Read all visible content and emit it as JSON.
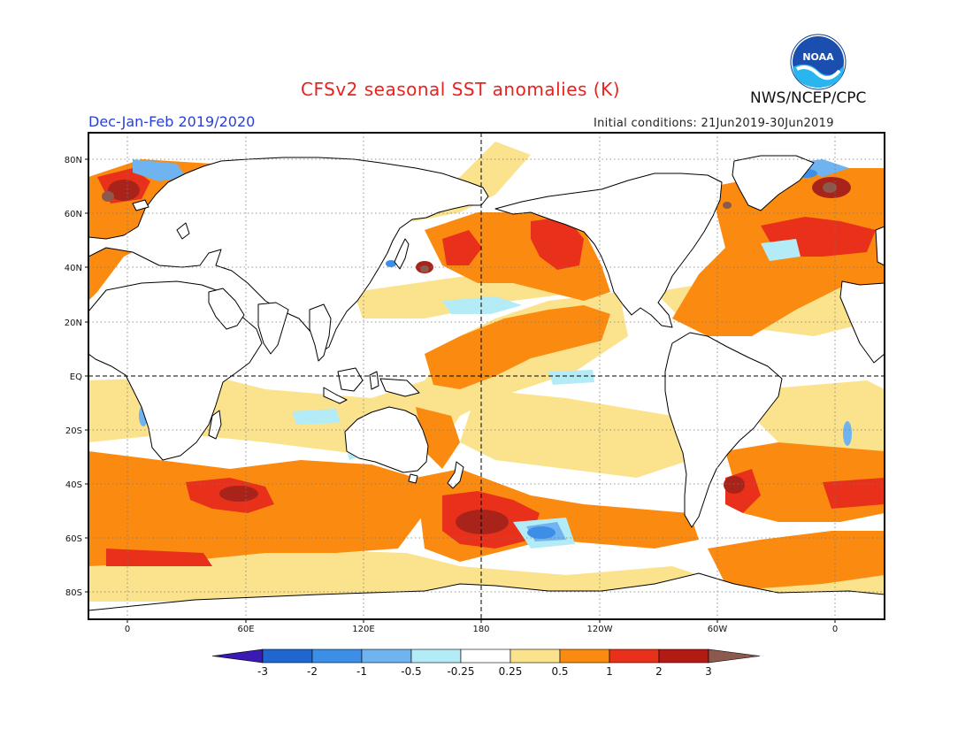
{
  "header": {
    "title": "CFSv2 seasonal SST anomalies (K)",
    "organization": "NWS/NCEP/CPC",
    "season": "Dec-Jan-Feb 2019/2020",
    "initial_conditions": "Initial conditions: 21Jun2019-30Jun2019",
    "logo_text": "NOAA"
  },
  "map": {
    "projection": "equirectangular, centered on 180",
    "lat_labels": [
      "80N",
      "60N",
      "40N",
      "20N",
      "EQ",
      "20S",
      "40S",
      "60S",
      "80S"
    ],
    "lon_labels": [
      "0",
      "60E",
      "120E",
      "180",
      "120W",
      "60W",
      "0"
    ],
    "reference_lines": [
      "equator (dashed)",
      "180 meridian (dashed)"
    ],
    "grid": "dotted"
  },
  "colorbar": {
    "labels": [
      "-3",
      "-2",
      "-1",
      "-0.5",
      "-0.25",
      "0.25",
      "0.5",
      "1",
      "2",
      "3"
    ],
    "colors": [
      "#3a1ab4",
      "#1f66cf",
      "#3d8ee6",
      "#6fb3f0",
      "#b3ecf6",
      "#ffffff",
      "#fbe38e",
      "#fb8b10",
      "#e8301a",
      "#b41a14",
      "#8b5a4c"
    ],
    "units": "K"
  },
  "colors": {
    "title": "#e8231f",
    "season": "#2a3fd6",
    "land": "#ffffff",
    "coast": "#000000"
  }
}
